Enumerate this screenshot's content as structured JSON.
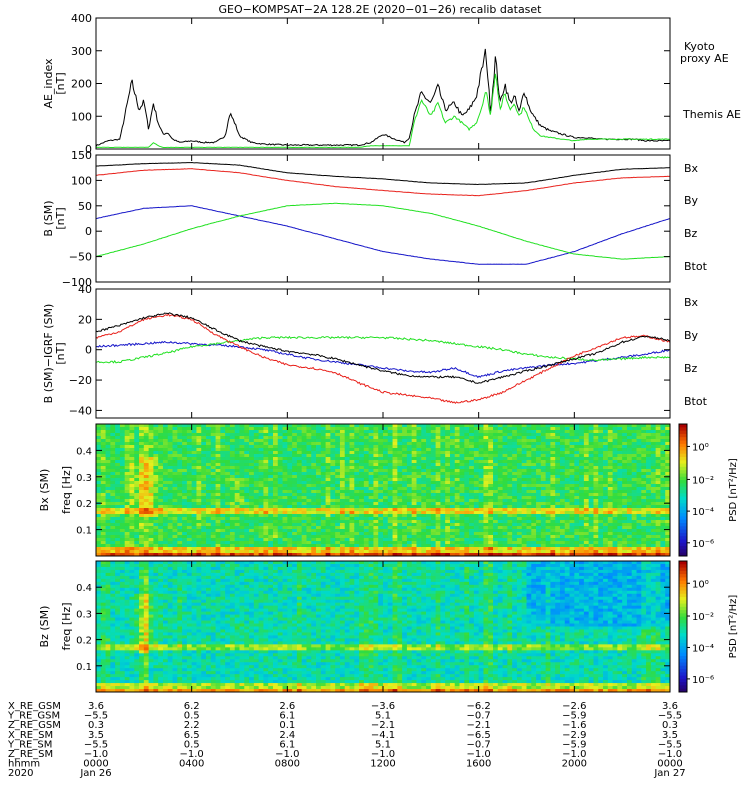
{
  "title": "GEO−KOMPSAT−2A 128.2E (2020−01−26) recalib dataset",
  "colors": {
    "black": "#000000",
    "red": "#e8211b",
    "green": "#20e020",
    "blue": "#1414c8"
  },
  "chart_data": [
    {
      "type": "line",
      "name": "ae-panel",
      "ylabel": "AE_index\n[nT]",
      "ylim": [
        0,
        400
      ],
      "yticks": [
        "0",
        "100",
        "200",
        "300",
        "400"
      ],
      "x_hours": [
        0,
        0.5,
        1,
        1.5,
        1.8,
        2,
        2.2,
        2.4,
        2.6,
        2.8,
        3,
        3.2,
        3.5,
        4,
        4.5,
        5,
        5.4,
        5.6,
        5.8,
        6,
        6.5,
        7,
        8,
        9,
        10,
        11,
        11.5,
        12,
        12.5,
        12.9,
        13.1,
        13.3,
        13.6,
        14,
        14.3,
        14.6,
        15,
        15.3,
        15.6,
        15.9,
        16.1,
        16.3,
        16.5,
        16.7,
        16.9,
        17.1,
        17.3,
        17.5,
        17.7,
        17.9,
        18.1,
        18.3,
        18.6,
        19,
        19.5,
        20,
        20.5,
        21,
        21.5,
        22,
        22.5,
        23,
        23.5,
        24
      ],
      "series": [
        {
          "name": "Themis AE",
          "color": "black",
          "values": [
            10,
            25,
            30,
            205,
            120,
            145,
            60,
            140,
            80,
            45,
            50,
            30,
            20,
            25,
            20,
            20,
            40,
            110,
            80,
            40,
            20,
            15,
            12,
            12,
            12,
            12,
            20,
            45,
            30,
            20,
            35,
            100,
            170,
            140,
            190,
            120,
            140,
            100,
            120,
            160,
            230,
            300,
            110,
            280,
            140,
            200,
            140,
            160,
            110,
            180,
            130,
            100,
            70,
            55,
            45,
            35,
            35,
            30,
            30,
            30,
            30,
            25,
            25,
            25
          ],
          "interpolation": "noisy"
        },
        {
          "name": "Kyoto proxy AE",
          "color": "green",
          "values": [
            5,
            5,
            5,
            5,
            5,
            5,
            5,
            20,
            10,
            5,
            5,
            5,
            5,
            5,
            5,
            5,
            5,
            5,
            5,
            5,
            5,
            5,
            5,
            5,
            5,
            5,
            10,
            10,
            10,
            10,
            10,
            80,
            150,
            100,
            140,
            80,
            100,
            80,
            60,
            80,
            120,
            180,
            100,
            240,
            120,
            170,
            120,
            140,
            100,
            130,
            90,
            60,
            40,
            35,
            30,
            25,
            30,
            30,
            30,
            30,
            30,
            30,
            30,
            30
          ],
          "interpolation": "smooth"
        }
      ],
      "legend": [
        "Kyoto\nproxy AE",
        "Themis AE"
      ]
    },
    {
      "type": "line",
      "name": "bsm-panel",
      "ylabel": "B (SM)\n[nT]",
      "ylim": [
        -100,
        150
      ],
      "yticks": [
        "−100",
        "−50",
        "0",
        "50",
        "100",
        "150"
      ],
      "x_hours": [
        0,
        2,
        4,
        6,
        8,
        10,
        12,
        14,
        16,
        18,
        20,
        22,
        24
      ],
      "series": [
        {
          "name": "Bx",
          "color": "blue",
          "values": [
            25,
            45,
            50,
            30,
            10,
            -15,
            -40,
            -55,
            -65,
            -65,
            -40,
            -5,
            25
          ]
        },
        {
          "name": "By",
          "color": "green",
          "values": [
            -50,
            -25,
            5,
            30,
            50,
            55,
            50,
            35,
            10,
            -20,
            -45,
            -55,
            -50
          ]
        },
        {
          "name": "Bz",
          "color": "red",
          "values": [
            110,
            120,
            123,
            115,
            100,
            88,
            80,
            73,
            70,
            80,
            95,
            105,
            108
          ]
        },
        {
          "name": "Btot",
          "color": "black",
          "values": [
            128,
            133,
            135,
            130,
            115,
            108,
            103,
            95,
            92,
            95,
            110,
            122,
            125
          ]
        }
      ],
      "legend": [
        "Bx",
        "By",
        "Bz",
        "Btot"
      ]
    },
    {
      "type": "line",
      "name": "bigrf-panel",
      "ylabel": "B (SM)−IGRF (SM)\n[nT]",
      "ylim": [
        -45,
        40
      ],
      "yticks": [
        "−40",
        "−20",
        "0",
        "20",
        "40"
      ],
      "x_hours": [
        0,
        1,
        2,
        3,
        4,
        5,
        6,
        7,
        8,
        9,
        10,
        11,
        12,
        13,
        14,
        15,
        16,
        17,
        18,
        19,
        20,
        21,
        22,
        23,
        24
      ],
      "series": [
        {
          "name": "Bx",
          "color": "blue",
          "values": [
            2,
            3,
            4,
            5,
            4,
            3,
            2,
            0,
            -3,
            -6,
            -8,
            -10,
            -12,
            -14,
            -15,
            -12,
            -18,
            -14,
            -12,
            -10,
            -9,
            -7,
            -5,
            -3,
            0
          ]
        },
        {
          "name": "By",
          "color": "green",
          "values": [
            -8,
            -8,
            -5,
            -2,
            2,
            4,
            6,
            8,
            8,
            8,
            8,
            8,
            8,
            7,
            6,
            4,
            2,
            0,
            -3,
            -5,
            -6,
            -7,
            -6,
            -5,
            -5
          ]
        },
        {
          "name": "Bz",
          "color": "red",
          "values": [
            8,
            12,
            20,
            23,
            20,
            10,
            2,
            -5,
            -10,
            -12,
            -15,
            -22,
            -28,
            -30,
            -32,
            -35,
            -33,
            -28,
            -20,
            -12,
            -4,
            2,
            8,
            9,
            5
          ]
        },
        {
          "name": "Btot",
          "color": "black",
          "values": [
            12,
            16,
            21,
            24,
            21,
            13,
            6,
            2,
            -1,
            -3,
            -6,
            -10,
            -14,
            -17,
            -18,
            -18,
            -22,
            -18,
            -14,
            -10,
            -6,
            -2,
            5,
            9,
            6
          ]
        }
      ],
      "legend": [
        "Bx",
        "By",
        "Bz",
        "Btot"
      ]
    },
    {
      "type": "heatmap",
      "name": "bx-spectrogram",
      "ylabel": "Bx (SM)",
      "ylabel2": "freq [Hz]",
      "ylim": [
        0,
        0.5
      ],
      "yticks": [
        "0.1",
        "0.2",
        "0.3",
        "0.4"
      ],
      "colorbar_label": "PSD [nT²/Hz]",
      "colorbar_ticks": [
        "10⁰",
        "10⁻²",
        "10⁻⁴",
        "10⁻⁶"
      ],
      "features": {
        "line_freq_hz": 0.17,
        "burst_hours": [
          2.0,
          12.5,
          16.4
        ],
        "background": "yellow-green"
      }
    },
    {
      "type": "heatmap",
      "name": "bz-spectrogram",
      "ylabel": "Bz (SM)",
      "ylabel2": "freq [Hz]",
      "ylim": [
        0,
        0.5
      ],
      "yticks": [
        "0.1",
        "0.2",
        "0.3",
        "0.4"
      ],
      "colorbar_label": "PSD [nT²/Hz]",
      "colorbar_ticks": [
        "10⁰",
        "10⁻²",
        "10⁻⁴",
        "10⁻⁶"
      ],
      "features": {
        "line_freq_hz": 0.17,
        "burst_hours": [
          2.0,
          12.5,
          16.4
        ],
        "background": "cyan-green"
      }
    }
  ],
  "ephemeris": {
    "labels": [
      "X_RE_GSM",
      "Y_RE_GSM",
      "Z_RE_GSM",
      "X_RE_SM",
      "Y_RE_SM",
      "Z_RE_SM",
      "hhmm",
      "2020"
    ],
    "columns": [
      [
        "3.6",
        "−5.5",
        "0.3",
        "3.5",
        "−5.5",
        "−1.0",
        "0000",
        "Jan 26"
      ],
      [
        "6.2",
        "0.5",
        "2.2",
        "6.5",
        "0.5",
        "−1.0",
        "0400",
        ""
      ],
      [
        "2.6",
        "6.1",
        "0.1",
        "2.4",
        "6.1",
        "−1.0",
        "0800",
        ""
      ],
      [
        "−3.6",
        "5.1",
        "−2.1",
        "−4.1",
        "5.1",
        "−1.0",
        "1200",
        ""
      ],
      [
        "−6.2",
        "−0.7",
        "−2.1",
        "−6.5",
        "−0.7",
        "−1.0",
        "1600",
        ""
      ],
      [
        "−2.6",
        "−5.9",
        "−1.6",
        "−2.9",
        "−5.9",
        "−1.0",
        "2000",
        ""
      ],
      [
        "3.6",
        "−5.5",
        "0.3",
        "3.5",
        "−5.5",
        "−1.0",
        "0000",
        "Jan 27"
      ]
    ]
  }
}
